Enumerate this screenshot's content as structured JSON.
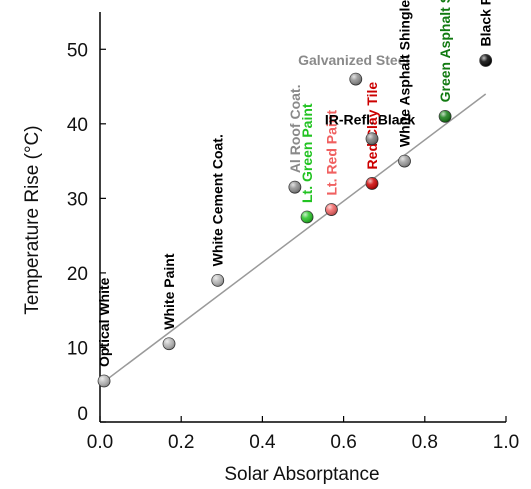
{
  "chart_data": {
    "type": "scatter",
    "xlabel": "Solar Absorptance",
    "ylabel": "Temperature Rise (°C)",
    "xlim": [
      0.0,
      1.0
    ],
    "ylim": [
      0,
      55
    ],
    "xticks": [
      "0.0",
      "0.2",
      "0.4",
      "0.6",
      "0.8",
      "1.0"
    ],
    "xtick_values": [
      0.0,
      0.2,
      0.4,
      0.6,
      0.8,
      1.0
    ],
    "yticks": [
      "0",
      "10",
      "20",
      "30",
      "40",
      "50"
    ],
    "ytick_values": [
      0,
      10,
      20,
      30,
      40,
      50
    ],
    "grid": false,
    "trend_line": {
      "x": [
        0.0,
        0.95
      ],
      "y": [
        5,
        44
      ]
    },
    "points": [
      {
        "name": "Optical White",
        "x": 0.01,
        "y": 5.5,
        "color": "#b5b5b5",
        "label_color": "#000000",
        "orient": "vertical"
      },
      {
        "name": "White Paint",
        "x": 0.17,
        "y": 10.5,
        "color": "#b5b5b5",
        "label_color": "#000000",
        "orient": "vertical"
      },
      {
        "name": "White Cement Coat.",
        "x": 0.29,
        "y": 19,
        "color": "#b5b5b5",
        "label_color": "#000000",
        "orient": "vertical"
      },
      {
        "name": "Al Roof Coat.",
        "x": 0.48,
        "y": 31.5,
        "color": "#8c8c8c",
        "label_color": "#8a8a8a",
        "orient": "vertical"
      },
      {
        "name": "Lt. Green Paint",
        "x": 0.51,
        "y": 27.5,
        "color": "#22c322",
        "label_color": "#22c322",
        "orient": "vertical"
      },
      {
        "name": "Lt. Red Paint",
        "x": 0.57,
        "y": 28.5,
        "color": "#f06060",
        "label_color": "#f06060",
        "orient": "vertical"
      },
      {
        "name": "Galvanized Steel",
        "x": 0.63,
        "y": 46,
        "color": "#8c8c8c",
        "label_color": "#8a8a8a",
        "orient": "horizontal"
      },
      {
        "name": "IR-Refl. Black",
        "x": 0.67,
        "y": 38,
        "color": "#7a7a7a",
        "label_color": "#000000",
        "orient": "horizontal"
      },
      {
        "name": "Red Clay Tile",
        "x": 0.67,
        "y": 32,
        "color": "#cc0000",
        "label_color": "#cc0000",
        "orient": "vertical"
      },
      {
        "name": "White Asphalt Shingle",
        "x": 0.75,
        "y": 35,
        "color": "#9c9c9c",
        "label_color": "#000000",
        "orient": "vertical"
      },
      {
        "name": "Green Asphalt Shingle",
        "x": 0.85,
        "y": 41,
        "color": "#117a11",
        "label_color": "#117a11",
        "orient": "vertical"
      },
      {
        "name": "Black Paint",
        "x": 0.95,
        "y": 48.5,
        "color": "#000000",
        "label_color": "#000000",
        "orient": "vertical"
      }
    ]
  }
}
